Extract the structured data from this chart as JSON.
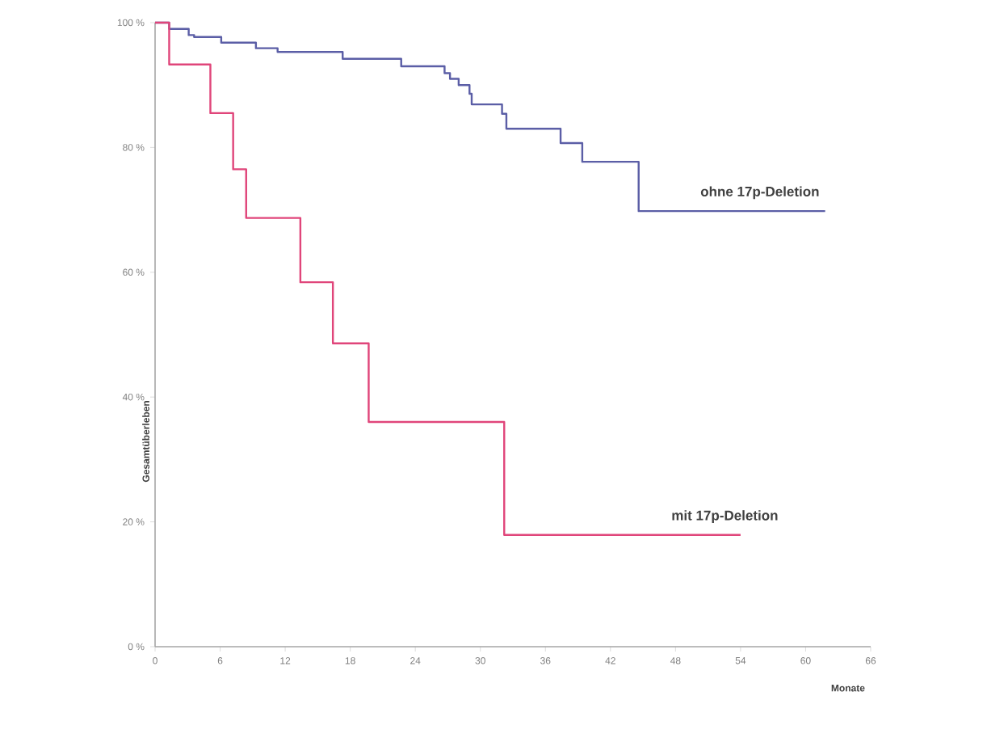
{
  "chart_data": {
    "type": "step",
    "xlabel": "Monate",
    "ylabel": "Gesamtüberleben",
    "xlim": [
      0,
      66
    ],
    "xticks": [
      0,
      6,
      12,
      18,
      24,
      30,
      36,
      42,
      48,
      54,
      60,
      66
    ],
    "ylim": [
      0,
      100
    ],
    "yticks": [
      {
        "value": 0,
        "label": "0 %"
      },
      {
        "value": 20,
        "label": "20 %"
      },
      {
        "value": 40,
        "label": "40 %"
      },
      {
        "value": 60,
        "label": "60 %"
      },
      {
        "value": 80,
        "label": "80 %"
      },
      {
        "value": 100,
        "label": "100 %"
      }
    ],
    "grid": false,
    "legend": false,
    "marker": "none",
    "line_style": "solid",
    "series": [
      {
        "name": "ohne 17p-Deletion",
        "color": "#5b5ea6",
        "x": [
          0,
          1.3,
          3.1,
          3.6,
          6.1,
          9.3,
          11.3,
          17.3,
          22.7,
          26.7,
          27.2,
          28,
          29,
          29.2,
          32,
          32.4,
          37.4,
          39.4,
          44.6,
          61.8
        ],
        "values": [
          100,
          99,
          98,
          97.7,
          96.8,
          95.9,
          95.3,
          94.2,
          93,
          91.9,
          91,
          90,
          88.6,
          86.9,
          85.4,
          83,
          80.7,
          77.7,
          69.8,
          69.8
        ]
      },
      {
        "name": "mit 17p-Deletion",
        "color": "#e0457a",
        "x": [
          0,
          1.3,
          5.1,
          7.2,
          8.4,
          13.4,
          16.4,
          19.7,
          32.2,
          54
        ],
        "values": [
          100,
          93.3,
          85.5,
          76.5,
          68.7,
          58.4,
          48.6,
          36,
          17.9,
          17.9
        ]
      }
    ]
  }
}
